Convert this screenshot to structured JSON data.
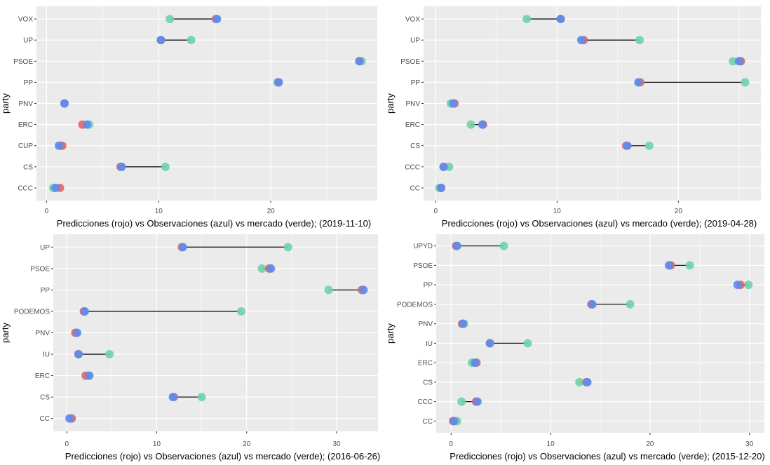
{
  "colors": {
    "panel_bg": "#EBEBEB",
    "grid": "#FFFFFF",
    "prediction": "#E06666",
    "observation": "#5B8DEF",
    "market": "#6FD3A8",
    "segment": "#1A1A1A"
  },
  "chart_data": [
    {
      "type": "dumbbell",
      "title": "",
      "xlabel": "Predicciones (rojo) vs  Observaciones (azul) vs mercado (verde); (2019-11-10)",
      "ylabel": "party",
      "xlim": [
        -0.9,
        29.5
      ],
      "xticks": [
        0,
        10,
        20
      ],
      "grid": true,
      "legend": "none",
      "categories": [
        "VOX",
        "UP",
        "PSOE",
        "PP",
        "PNV",
        "ERC",
        "CUP",
        "CS",
        "CCC"
      ],
      "series": [
        {
          "name": "Predicciones (rojo)",
          "values": [
            15.1,
            10.2,
            27.9,
            20.7,
            1.6,
            3.2,
            1.4,
            6.6,
            1.2
          ]
        },
        {
          "name": "Observaciones (azul)",
          "values": [
            15.2,
            10.2,
            27.9,
            20.7,
            1.6,
            3.6,
            1.1,
            6.7,
            0.8
          ]
        },
        {
          "name": "mercado (verde)",
          "values": [
            11.0,
            12.9,
            28.1,
            20.6,
            1.6,
            3.8,
            1.2,
            10.6,
            0.6
          ]
        }
      ]
    },
    {
      "type": "dumbbell",
      "title": "",
      "xlabel": "Predicciones (rojo) vs  Observaciones (azul) vs mercado (verde); (2019-04-28)",
      "ylabel": "party",
      "xlim": [
        -1.0,
        26.8
      ],
      "xticks": [
        0,
        10,
        20
      ],
      "grid": true,
      "legend": "none",
      "categories": [
        "VOX",
        "UP",
        "PSOE",
        "PP",
        "PNV",
        "ERC",
        "CS",
        "CCC",
        "CC"
      ],
      "series": [
        {
          "name": "Predicciones (rojo)",
          "values": [
            10.3,
            12.2,
            25.15,
            16.85,
            1.55,
            3.9,
            15.7,
            0.65,
            0.45
          ]
        },
        {
          "name": "Observaciones (azul)",
          "values": [
            10.3,
            12.0,
            25.0,
            16.7,
            1.45,
            3.85,
            15.8,
            0.65,
            0.45
          ]
        },
        {
          "name": "mercado (verde)",
          "values": [
            7.5,
            16.8,
            24.5,
            25.5,
            1.25,
            2.9,
            17.6,
            1.1,
            0.3
          ]
        }
      ]
    },
    {
      "type": "dumbbell",
      "title": "",
      "xlabel": "Predicciones (rojo) vs  Observaciones (azul) vs mercado (verde); (2016-06-26)",
      "ylabel": "party",
      "xlim": [
        -1.5,
        34.6
      ],
      "xticks": [
        0,
        10,
        20,
        30
      ],
      "grid": true,
      "legend": "none",
      "categories": [
        "UP",
        "PSOE",
        "PP",
        "PODEMOS",
        "PNV",
        "IU",
        "ERC",
        "CS",
        "CC"
      ],
      "series": [
        {
          "name": "Predicciones (rojo)",
          "values": [
            12.8,
            22.5,
            32.8,
            1.9,
            0.95,
            1.3,
            2.1,
            11.9,
            0.55
          ]
        },
        {
          "name": "Observaciones (azul)",
          "values": [
            12.9,
            22.7,
            33.0,
            2.0,
            1.15,
            1.3,
            2.5,
            11.8,
            0.3
          ]
        },
        {
          "name": "mercado (verde)",
          "values": [
            24.6,
            21.7,
            29.1,
            19.4,
            null,
            4.75,
            2.5,
            15.0,
            null
          ]
        }
      ]
    },
    {
      "type": "dumbbell",
      "title": "",
      "xlabel": "Predicciones (rojo) vs  Observaciones (azul) vs mercado (verde); (2015-12-20)",
      "ylabel": "party",
      "xlim": [
        -1.5,
        31.5
      ],
      "xticks": [
        0,
        10,
        20,
        30
      ],
      "grid": true,
      "legend": "none",
      "categories": [
        "UPYD",
        "PSOE",
        "PP",
        "PODEMOS",
        "PNV",
        "IU",
        "ERC",
        "CS",
        "CCC",
        "CC"
      ],
      "series": [
        {
          "name": "Predicciones (rojo)",
          "values": [
            0.5,
            22.1,
            29.1,
            14.1,
            1.1,
            3.9,
            2.55,
            13.6,
            2.5,
            0.2
          ]
        },
        {
          "name": "Observaciones (azul)",
          "values": [
            0.6,
            21.9,
            28.8,
            14.2,
            1.2,
            3.9,
            2.4,
            13.7,
            2.65,
            0.3
          ]
        },
        {
          "name": "mercado (verde)",
          "values": [
            5.3,
            24.0,
            29.9,
            18.0,
            1.3,
            7.7,
            2.1,
            12.9,
            1.05,
            0.6
          ]
        }
      ]
    }
  ]
}
